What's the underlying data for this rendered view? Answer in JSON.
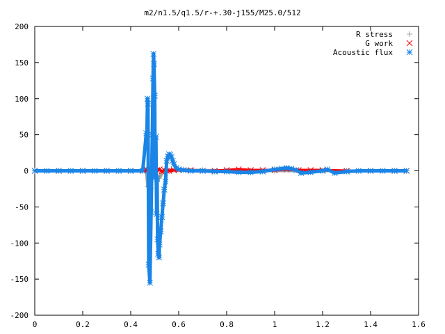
{
  "chart_data": {
    "type": "scatter",
    "title": "m2/n1.5/q1.5/r-+.30-j155/M25.0/512",
    "xlabel": "",
    "ylabel": "",
    "xlim": [
      0,
      1.6
    ],
    "ylim": [
      -200,
      200
    ],
    "x_ticks": [
      "0",
      "0.2",
      "0.4",
      "0.6",
      "0.8",
      "1",
      "1.2",
      "1.4",
      "1.6"
    ],
    "y_ticks": [
      "200",
      "150",
      "100",
      "50",
      "0",
      "-50",
      "-100",
      "-150",
      "-200"
    ],
    "x_tick_values": [
      0,
      0.2,
      0.4,
      0.6,
      0.8,
      1.0,
      1.2,
      1.4,
      1.6
    ],
    "y_tick_values": [
      200,
      150,
      100,
      50,
      0,
      -50,
      -100,
      -150,
      -200
    ],
    "grid": false,
    "legend_position": "top-right",
    "series": [
      {
        "name": "R stress",
        "marker": "+",
        "color": "#a0a0a0",
        "x": [
          0.0,
          0.05,
          0.1,
          0.15,
          0.2,
          0.25,
          0.3,
          0.35,
          0.4,
          0.44,
          0.465,
          0.47,
          0.475,
          0.48,
          0.485,
          0.49,
          0.5,
          0.51,
          0.52,
          0.53,
          0.55,
          0.58,
          0.62,
          0.66,
          0.7,
          0.8,
          0.9,
          1.0,
          1.1,
          1.2,
          1.3,
          1.4,
          1.5,
          1.55
        ],
        "y": [
          0,
          0,
          0,
          0,
          0,
          0,
          0,
          0,
          0,
          0,
          2,
          -22,
          -14,
          -19,
          -24,
          -5,
          2,
          -6,
          -10,
          -4,
          1,
          1,
          2,
          1,
          1,
          0,
          0,
          0,
          0,
          0,
          0,
          0,
          0,
          0
        ]
      },
      {
        "name": "G work",
        "marker": "x",
        "color": "#ff0000",
        "x": [
          0.0,
          0.1,
          0.2,
          0.3,
          0.4,
          0.45,
          0.47,
          0.48,
          0.49,
          0.5,
          0.51,
          0.52,
          0.53,
          0.54,
          0.55,
          0.56,
          0.58,
          0.6,
          0.65,
          0.7,
          0.75,
          0.8,
          0.85,
          0.9,
          0.95,
          1.0,
          1.05,
          1.1,
          1.15,
          1.2,
          1.3,
          1.4,
          1.5,
          1.55
        ],
        "y": [
          0,
          0,
          0,
          0,
          0,
          0,
          1,
          2,
          1,
          -2,
          1,
          2,
          -1,
          1,
          0,
          0,
          1,
          1,
          1,
          0,
          0,
          1,
          2,
          1,
          1,
          1,
          2,
          1,
          1,
          1,
          0,
          0,
          0,
          0
        ]
      },
      {
        "name": "Acoustic flux",
        "marker": "*",
        "color": "#1a85e6",
        "x": [
          0.0,
          0.05,
          0.1,
          0.15,
          0.2,
          0.25,
          0.3,
          0.35,
          0.4,
          0.45,
          0.465,
          0.467,
          0.47,
          0.472,
          0.475,
          0.48,
          0.485,
          0.49,
          0.493,
          0.495,
          0.497,
          0.5,
          0.502,
          0.505,
          0.508,
          0.51,
          0.512,
          0.515,
          0.518,
          0.52,
          0.525,
          0.53,
          0.535,
          0.54,
          0.545,
          0.55,
          0.555,
          0.56,
          0.565,
          0.57,
          0.575,
          0.58,
          0.59,
          0.6,
          0.62,
          0.65,
          0.7,
          0.75,
          0.8,
          0.85,
          0.9,
          0.95,
          1.0,
          1.03,
          1.05,
          1.07,
          1.09,
          1.11,
          1.15,
          1.2,
          1.22,
          1.25,
          1.3,
          1.35,
          1.4,
          1.45,
          1.5,
          1.55
        ],
        "y": [
          0,
          0,
          0,
          0,
          0,
          0,
          0,
          0,
          0,
          0,
          52,
          40,
          100,
          93,
          -130,
          -155,
          -57,
          50,
          128,
          162,
          148,
          104,
          -10,
          47,
          -60,
          -11,
          -95,
          -115,
          -120,
          -102,
          -84,
          -64,
          -45,
          -26,
          -15,
          14,
          20,
          23,
          22,
          19,
          14,
          9,
          4,
          2,
          1,
          0,
          0,
          -1,
          -1,
          -2,
          -2,
          -1,
          2,
          3,
          4,
          3,
          1,
          -3,
          -2,
          0,
          2,
          -3,
          -1,
          0,
          0,
          0,
          0,
          0
        ]
      }
    ]
  }
}
